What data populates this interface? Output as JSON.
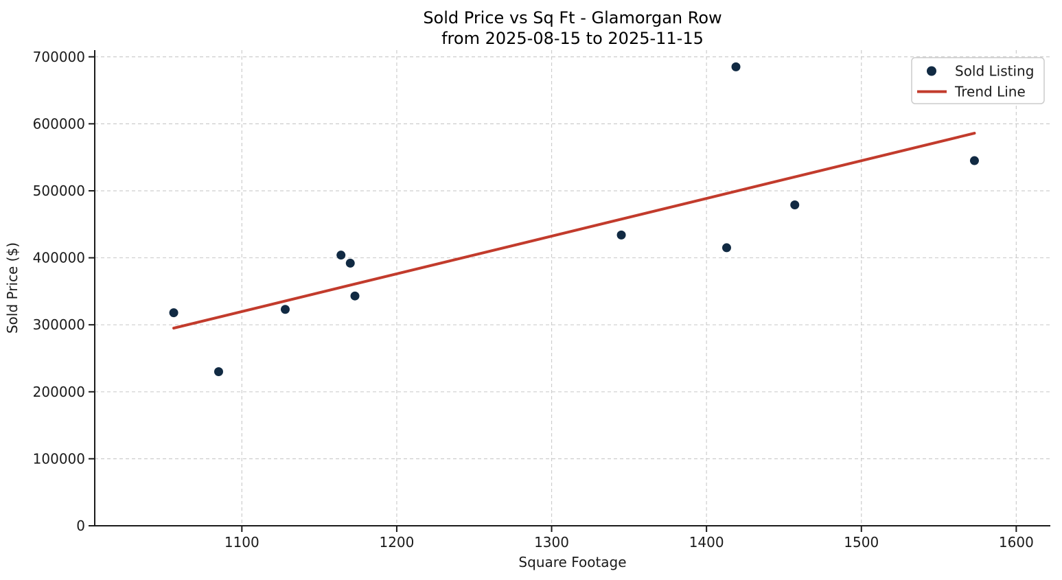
{
  "figure": {
    "background": "#ffffff",
    "axis_color": "#1a1a1a",
    "grid_color": "#cdcdcd",
    "text_color": "#1a1a1a"
  },
  "chart_data": {
    "type": "scatter",
    "title": "Sold Price vs Sq Ft - Glamorgan Row",
    "subtitle": "from 2025-08-15 to 2025-11-15",
    "xlabel": "Square Footage",
    "ylabel": "Sold Price ($)",
    "xlim": [
      1005,
      1622
    ],
    "ylim": [
      0,
      710000
    ],
    "x_ticks": [
      1100,
      1200,
      1300,
      1400,
      1500,
      1600
    ],
    "y_ticks": [
      0,
      100000,
      200000,
      300000,
      400000,
      500000,
      600000,
      700000
    ],
    "grid": true,
    "grid_style": "dashed",
    "legend_position": "upper right",
    "series": [
      {
        "name": "Sold Listing",
        "kind": "scatter",
        "marker": "circle",
        "color": "#112a43",
        "points": [
          [
            1056,
            318000
          ],
          [
            1085,
            230000
          ],
          [
            1128,
            323000
          ],
          [
            1164,
            404000
          ],
          [
            1170,
            392000
          ],
          [
            1173,
            343000
          ],
          [
            1345,
            434000
          ],
          [
            1413,
            415000
          ],
          [
            1419,
            685000
          ],
          [
            1457,
            479000
          ],
          [
            1573,
            545000
          ]
        ]
      },
      {
        "name": "Trend Line",
        "kind": "line",
        "color": "#c23b2c",
        "points": [
          [
            1056,
            295000
          ],
          [
            1573,
            586000
          ]
        ]
      }
    ]
  }
}
